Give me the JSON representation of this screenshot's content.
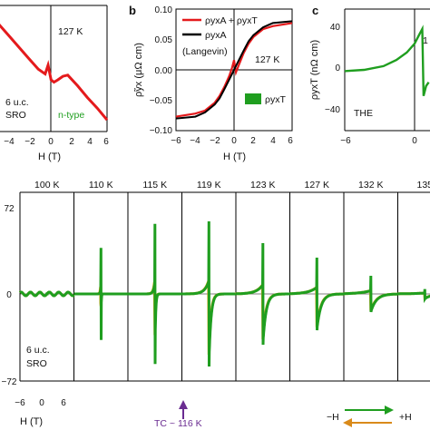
{
  "colors": {
    "red": "#e41a1c",
    "green": "#1f9e1f",
    "black": "#000000",
    "yellow": "#e6a817",
    "purple": "#6a2c91",
    "orange": "#d98a1a"
  },
  "chart_data": [
    {
      "panel": "a",
      "type": "line",
      "xlabel": "H (T)",
      "xlim": [
        -6,
        6
      ],
      "xticks": [
        "−4",
        "−2",
        "0",
        "2",
        "4",
        "6"
      ],
      "annotations": [
        "127 K",
        "6 u.c.",
        "SRO",
        "n-type"
      ],
      "series": [
        {
          "color": "#e41a1c",
          "x": [
            -6,
            -5,
            -4,
            -3,
            -2,
            -1,
            -0.3,
            0,
            0.3,
            0.6,
            1,
            1.5,
            2,
            3,
            4,
            5,
            6
          ],
          "y": [
            0.88,
            0.74,
            0.55,
            0.36,
            0.17,
            -0.02,
            -0.1,
            0.05,
            -0.2,
            -0.24,
            -0.2,
            -0.14,
            -0.12,
            -0.3,
            -0.5,
            -0.68,
            -0.88
          ]
        }
      ]
    },
    {
      "panel": "b",
      "type": "line",
      "title": "b",
      "xlabel": "H (T)",
      "ylabel": "ρ̃yx (μΩ cm)",
      "xlim": [
        -6,
        6
      ],
      "ylim": [
        -0.1,
        0.1
      ],
      "xticks": [
        "−6",
        "−4",
        "−2",
        "0",
        "2",
        "4",
        "6"
      ],
      "yticks": [
        "0.10",
        "0.05",
        "0.00",
        "−0.05",
        "−0.10"
      ],
      "legend": [
        {
          "name": "ρyxA + ρyxT",
          "color": "#e41a1c"
        },
        {
          "name": "ρyxA",
          "color": "#000000"
        },
        {
          "name": "(Langevin)",
          "color": ""
        },
        {
          "name": "ρyxT",
          "color": "#1f9e1f"
        }
      ],
      "annotations": [
        "127 K"
      ],
      "series": [
        {
          "name": "ρyxA + ρyxT",
          "color": "#e41a1c",
          "x": [
            -6,
            -4,
            -3,
            -2,
            -1.5,
            -1,
            -0.5,
            -0.2,
            0,
            0.2,
            0.5,
            1,
            1.5,
            2,
            3,
            4,
            6
          ],
          "y": [
            -0.077,
            -0.072,
            -0.067,
            -0.054,
            -0.043,
            -0.028,
            -0.01,
            0.004,
            0.016,
            -0.004,
            0.008,
            0.028,
            0.043,
            0.054,
            0.067,
            0.072,
            0.077
          ]
        },
        {
          "name": "ρyxA",
          "color": "#000000",
          "x": [
            -6,
            -4,
            -3,
            -2,
            -1.5,
            -1,
            -0.5,
            0,
            0.5,
            1,
            1.5,
            2,
            3,
            4,
            6
          ],
          "y": [
            -0.08,
            -0.077,
            -0.07,
            -0.057,
            -0.047,
            -0.032,
            -0.016,
            0,
            0.016,
            0.032,
            0.047,
            0.057,
            0.07,
            0.077,
            0.08
          ]
        }
      ]
    },
    {
      "panel": "c",
      "type": "line",
      "title": "c",
      "xlabel": "",
      "ylabel": "ρyxT (nΩ cm)",
      "xlim": [
        -6,
        0.6
      ],
      "ylim": [
        -48,
        50
      ],
      "xticks": [
        "−6",
        "0"
      ],
      "yticks": [
        "40",
        "0",
        "−40"
      ],
      "annotations": [
        "THE",
        "1"
      ],
      "series": [
        {
          "color": "#1f9e1f",
          "x": [
            -6,
            -4.5,
            -3,
            -2,
            -1.2,
            -0.6,
            -0.2,
            0,
            0.1,
            0.3,
            0.5
          ],
          "y": [
            0,
            1,
            4,
            9,
            15,
            22,
            30,
            34,
            -20,
            -12,
            -9
          ]
        }
      ]
    },
    {
      "panel": "d",
      "type": "line",
      "xlabel": "H (T)",
      "ylim": [
        -72,
        72
      ],
      "yticks": [
        "72",
        "0",
        "−72"
      ],
      "xticks": [
        "−6",
        "0",
        "6"
      ],
      "temperatures": [
        "100 K",
        "110 K",
        "115 K",
        "119 K",
        "123 K",
        "127 K",
        "132 K",
        "135"
      ],
      "annotations": [
        "6 u.c.",
        "SRO",
        "TC ~ 116 K",
        "−H",
        "+H"
      ],
      "series": [
        {
          "name": "+H",
          "color": "#1f9e1f"
        },
        {
          "name": "−H",
          "color": "#e6a817"
        }
      ],
      "panels": [
        {
          "label": "100 K",
          "amp": 1,
          "w": 0.6
        },
        {
          "label": "110 K",
          "amp": 38,
          "w": 0.06
        },
        {
          "label": "115 K",
          "amp": 58,
          "w": 0.15
        },
        {
          "label": "119 K",
          "amp": 60,
          "w": 0.45
        },
        {
          "label": "123 K",
          "amp": 42,
          "w": 0.7
        },
        {
          "label": "127 K",
          "amp": 30,
          "w": 0.9
        },
        {
          "label": "132 K",
          "amp": 15,
          "w": 1.2
        },
        {
          "label": "135",
          "amp": 4,
          "w": 1.5
        }
      ]
    }
  ]
}
